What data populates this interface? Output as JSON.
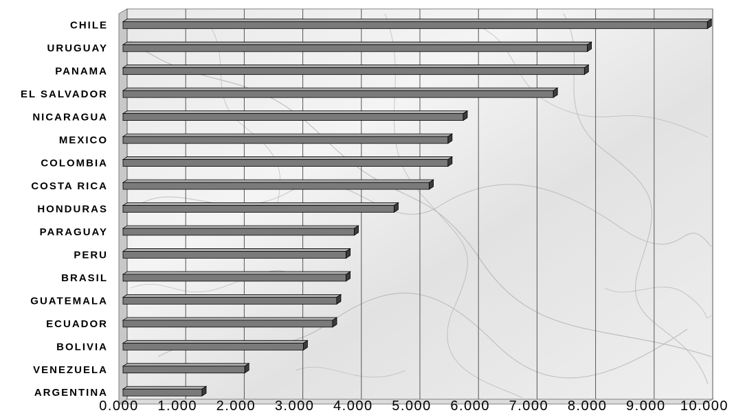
{
  "chart_data": {
    "type": "bar",
    "orientation": "horizontal",
    "categories": [
      "CHILE",
      "URUGUAY",
      "PANAMA",
      "EL SALVADOR",
      "NICARAGUA",
      "MEXICO",
      "COLOMBIA",
      "COSTA RICA",
      "HONDURAS",
      "PARAGUAY",
      "PERU",
      "BRASIL",
      "GUATEMALA",
      "ECUADOR",
      "BOLIVIA",
      "VENEZUELA",
      "ARGENTINA"
    ],
    "values": [
      10.05,
      8.0,
      7.95,
      7.42,
      5.88,
      5.62,
      5.62,
      5.3,
      4.7,
      4.02,
      3.88,
      3.88,
      3.72,
      3.65,
      3.15,
      2.15,
      1.42
    ],
    "x_ticks": [
      "0.000",
      "1.000",
      "2.000",
      "3.000",
      "4.000",
      "5.000",
      "6.000",
      "7.000",
      "8.000",
      "9.000",
      "10.000"
    ],
    "xlim": [
      0,
      10
    ],
    "title": "",
    "xlabel": "",
    "ylabel": "",
    "grid": "vertical",
    "legend": "none",
    "style": {
      "bar_face": "#7a7a7a",
      "bar_top": "#b0b0b0",
      "bar_side": "#3c3c3c",
      "plot_background": "marble-grey-white",
      "grid_color": "#555555"
    }
  }
}
